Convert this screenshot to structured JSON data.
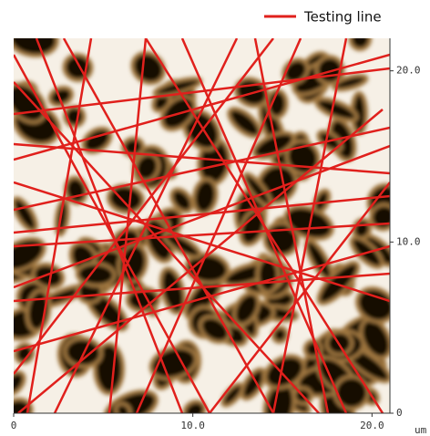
{
  "chart_data": {
    "type": "image",
    "legend": "Testing line",
    "legend_color": "#e0201c",
    "x_unit": "um",
    "xlim": [
      0,
      21
    ],
    "ylim": [
      0,
      21.9
    ],
    "xticks": [
      0,
      {
        "value": 10,
        "label": "10.0"
      },
      {
        "value": 20,
        "label": "20.0"
      }
    ],
    "yticks": [
      0,
      {
        "value": 10,
        "label": "10.0"
      },
      {
        "value": 20,
        "label": "20.0"
      }
    ]
  }
}
